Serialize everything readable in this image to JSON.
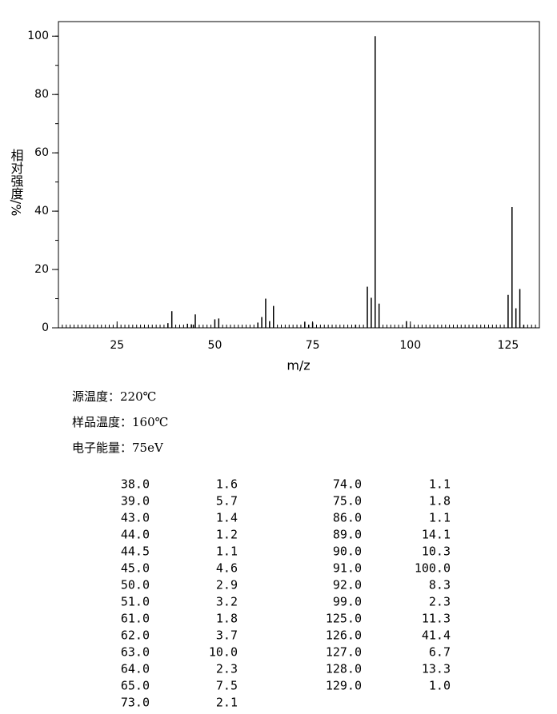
{
  "chart_data": {
    "type": "bar",
    "xlabel": "m/z",
    "ylabel": "相对强度/%",
    "x": [
      38,
      39,
      43,
      44,
      44.5,
      45,
      50,
      51,
      61,
      62,
      63,
      64,
      65,
      73,
      74,
      75,
      86,
      89,
      90,
      91,
      92,
      99,
      125,
      126,
      127,
      128,
      129
    ],
    "values": [
      1.6,
      5.7,
      1.4,
      1.2,
      1.1,
      4.6,
      2.9,
      3.2,
      1.8,
      3.7,
      10.0,
      2.3,
      7.5,
      2.1,
      1.1,
      1.8,
      1.1,
      14.1,
      10.3,
      100.0,
      8.3,
      2.3,
      11.3,
      41.4,
      6.7,
      13.3,
      1.0
    ],
    "color": "#000000",
    "xlim": [
      10,
      133
    ],
    "xticks": [
      25,
      50,
      75,
      100,
      125
    ],
    "ylim": [
      0,
      105
    ],
    "yticks": [
      0,
      20,
      40,
      60,
      80,
      100
    ]
  },
  "info": [
    "源温度：220℃",
    "样品温度：160℃",
    "电子能量：75eV"
  ],
  "table": {
    "columns": [
      [
        [
          "38.0",
          "1.6"
        ],
        [
          "39.0",
          "5.7"
        ],
        [
          "43.0",
          "1.4"
        ],
        [
          "44.0",
          "1.2"
        ],
        [
          "44.5",
          "1.1"
        ],
        [
          "45.0",
          "4.6"
        ],
        [
          "50.0",
          "2.9"
        ],
        [
          "51.0",
          "3.2"
        ],
        [
          "61.0",
          "1.8"
        ],
        [
          "62.0",
          "3.7"
        ],
        [
          "63.0",
          "10.0"
        ],
        [
          "64.0",
          "2.3"
        ],
        [
          "65.0",
          "7.5"
        ],
        [
          "73.0",
          "2.1"
        ]
      ],
      [
        [
          "74.0",
          "1.1"
        ],
        [
          "75.0",
          "1.8"
        ],
        [
          "86.0",
          "1.1"
        ],
        [
          "89.0",
          "14.1"
        ],
        [
          "90.0",
          "10.3"
        ],
        [
          "91.0",
          "100.0"
        ],
        [
          "92.0",
          "8.3"
        ],
        [
          "99.0",
          "2.3"
        ],
        [
          "125.0",
          "11.3"
        ],
        [
          "126.0",
          "41.4"
        ],
        [
          "127.0",
          "6.7"
        ],
        [
          "128.0",
          "13.3"
        ],
        [
          "129.0",
          "1.0"
        ]
      ]
    ]
  }
}
